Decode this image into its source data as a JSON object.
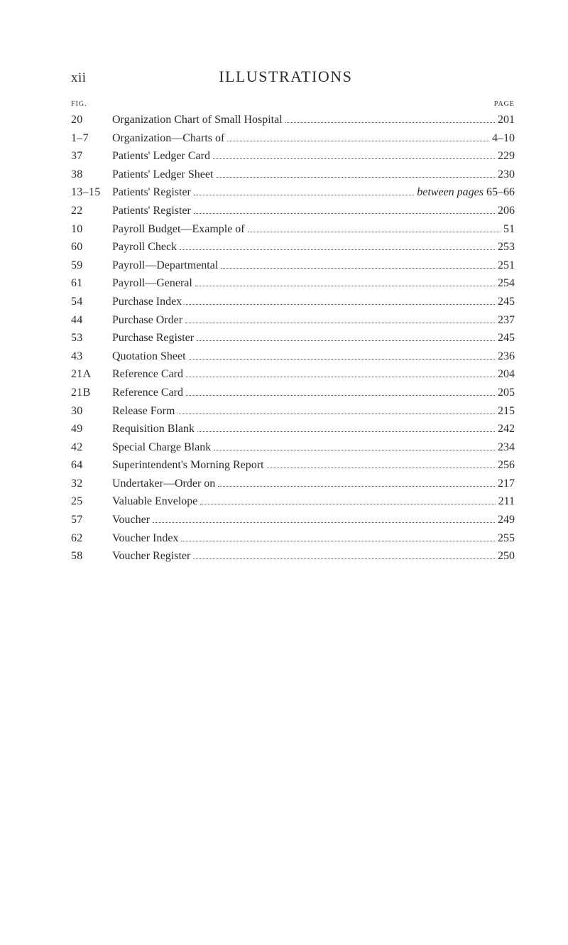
{
  "header": {
    "roman": "xii",
    "title": "ILLUSTRATIONS",
    "fig_label": "FIG.",
    "page_label": "PAGE"
  },
  "entries": [
    {
      "fig": "20",
      "title": "Organization Chart of Small Hospital",
      "page": "201"
    },
    {
      "fig": "1–7",
      "title": "Organization—Charts of",
      "page": "4–10"
    },
    {
      "fig": "37",
      "title": "Patients' Ledger Card",
      "page": "229"
    },
    {
      "fig": "38",
      "title": "Patients' Ledger Sheet",
      "page": "230"
    },
    {
      "fig": "13–15",
      "title": "Patients' Register",
      "suffix": "between pages",
      "page": "65–66"
    },
    {
      "fig": "22",
      "title": "Patients' Register",
      "page": "206"
    },
    {
      "fig": "10",
      "title": "Payroll Budget—Example of",
      "page": "51"
    },
    {
      "fig": "60",
      "title": "Payroll Check",
      "page": "253"
    },
    {
      "fig": "59",
      "title": "Payroll—Departmental",
      "page": "251"
    },
    {
      "fig": "61",
      "title": "Payroll—General",
      "page": "254"
    },
    {
      "fig": "54",
      "title": "Purchase Index",
      "page": "245"
    },
    {
      "fig": "44",
      "title": "Purchase Order",
      "page": "237"
    },
    {
      "fig": "53",
      "title": "Purchase Register",
      "page": "245"
    },
    {
      "fig": "43",
      "title": "Quotation Sheet",
      "page": "236"
    },
    {
      "fig": "21A",
      "title": "Reference Card",
      "page": "204"
    },
    {
      "fig": "21B",
      "title": "Reference Card",
      "page": "205"
    },
    {
      "fig": "30",
      "title": "Release Form",
      "page": "215"
    },
    {
      "fig": "49",
      "title": "Requisition Blank",
      "page": "242"
    },
    {
      "fig": "42",
      "title": "Special Charge Blank",
      "page": "234"
    },
    {
      "fig": "64",
      "title": "Superintendent's Morning Report",
      "page": "256"
    },
    {
      "fig": "32",
      "title": "Undertaker—Order on",
      "page": "217"
    },
    {
      "fig": "25",
      "title": "Valuable Envelope",
      "page": "211"
    },
    {
      "fig": "57",
      "title": "Voucher",
      "page": "249"
    },
    {
      "fig": "62",
      "title": "Voucher Index",
      "page": "255"
    },
    {
      "fig": "58",
      "title": "Voucher Register",
      "page": "250"
    }
  ]
}
